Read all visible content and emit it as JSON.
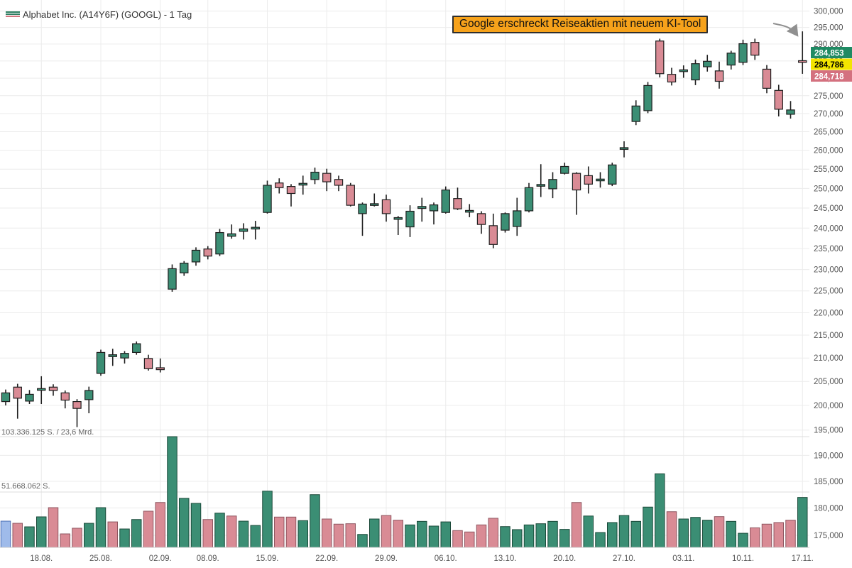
{
  "legend": {
    "title": "Alphabet Inc. (A14Y6F) (GOOGL) - 1 Tag"
  },
  "annotation": {
    "text": "Google erschreckt Reiseaktien mit neuem KI-Tool",
    "bg": "#F6A21B"
  },
  "volume_axis": {
    "max_label": "103.336.125 S. / 23,6 Mrd.",
    "max_value_millions": 103.336125,
    "mid_label": "51.668.062 S.",
    "mid_value_millions": 51.668062
  },
  "quote_labels": [
    {
      "text": "284,853",
      "bg": "#1f8a63",
      "fg": "#ffffff"
    },
    {
      "text": "284,786",
      "bg": "#f2e400",
      "fg": "#000000"
    },
    {
      "text": "284,718",
      "bg": "#d4717f",
      "fg": "#ffffff"
    }
  ],
  "chart_data": {
    "type": "candlestick_with_volume",
    "title": "Alphabet Inc. (A14Y6F) (GOOGL) - 1 Tag",
    "interval": "1 Tag",
    "y_scale": "log",
    "y_axis_ticks": [
      "300,000",
      "295,000",
      "290,000",
      "285,000",
      "280,000",
      "275,000",
      "270,000",
      "265,000",
      "260,000",
      "255,000",
      "250,000",
      "245,000",
      "240,000",
      "235,000",
      "230,000",
      "225,000",
      "220,000",
      "215,000",
      "210,000",
      "205,000",
      "200,000",
      "195,000",
      "190,000",
      "185,000",
      "180,000",
      "175,000"
    ],
    "x_tick_labels": [
      {
        "index": 3,
        "label": "18.08."
      },
      {
        "index": 8,
        "label": "25.08."
      },
      {
        "index": 13,
        "label": "02.09."
      },
      {
        "index": 17,
        "label": "08.09."
      },
      {
        "index": 22,
        "label": "15.09."
      },
      {
        "index": 27,
        "label": "22.09."
      },
      {
        "index": 32,
        "label": "29.09."
      },
      {
        "index": 37,
        "label": "06.10."
      },
      {
        "index": 42,
        "label": "13.10."
      },
      {
        "index": 47,
        "label": "20.10."
      },
      {
        "index": 52,
        "label": "27.10."
      },
      {
        "index": 57,
        "label": "03.11."
      },
      {
        "index": 62,
        "label": "10.11."
      },
      {
        "index": 67,
        "label": "17.11."
      }
    ],
    "series_ohlcv": [
      [
        200.8,
        203.3,
        200.0,
        202.6,
        24.5
      ],
      [
        203.8,
        204.5,
        197.3,
        201.5,
        22.5
      ],
      [
        200.9,
        203.2,
        200.3,
        202.3,
        19.2
      ],
      [
        203.3,
        206.1,
        200.3,
        203.5,
        28.5
      ],
      [
        203.8,
        204.4,
        202.0,
        203.1,
        37.1
      ],
      [
        202.6,
        203.1,
        199.4,
        201.1,
        12.6
      ],
      [
        200.8,
        201.3,
        195.6,
        199.4,
        17.9
      ],
      [
        201.2,
        203.9,
        198.4,
        203.1,
        22.5
      ],
      [
        206.7,
        211.8,
        206.2,
        211.2,
        37.1
      ],
      [
        210.3,
        212.0,
        208.3,
        210.7,
        23.8
      ],
      [
        210.0,
        211.5,
        208.8,
        211.0,
        17.2
      ],
      [
        211.2,
        213.6,
        210.7,
        213.1,
        26.0
      ],
      [
        209.9,
        210.7,
        207.3,
        207.7,
        33.8
      ],
      [
        207.9,
        209.9,
        206.9,
        207.5,
        41.9
      ],
      [
        225.4,
        231.2,
        224.8,
        230.2,
        103.336
      ],
      [
        229.2,
        232.0,
        228.5,
        231.5,
        45.8
      ],
      [
        231.8,
        235.3,
        230.9,
        234.6,
        41.1
      ],
      [
        234.9,
        235.6,
        232.4,
        233.2,
        26.0
      ],
      [
        233.7,
        239.8,
        233.2,
        238.9,
        32.0
      ],
      [
        238.0,
        240.9,
        237.4,
        238.6,
        29.3
      ],
      [
        239.2,
        241.2,
        237.2,
        239.8,
        24.5
      ],
      [
        239.9,
        241.8,
        237.2,
        240.2,
        20.5
      ],
      [
        243.9,
        252.0,
        243.6,
        250.8,
        52.5
      ],
      [
        251.4,
        252.6,
        248.7,
        250.2,
        28.3
      ],
      [
        250.5,
        251.1,
        245.4,
        248.7,
        28.3
      ],
      [
        250.9,
        253.3,
        248.4,
        251.3,
        25.0
      ],
      [
        252.3,
        255.4,
        251.1,
        254.2,
        49.2
      ],
      [
        253.9,
        255.1,
        249.3,
        251.7,
        26.5
      ],
      [
        252.3,
        253.3,
        249.3,
        250.8,
        21.7
      ],
      [
        250.8,
        251.4,
        245.4,
        245.7,
        22.1
      ],
      [
        243.6,
        246.4,
        238.1,
        246.0,
        12.1
      ],
      [
        245.8,
        248.7,
        245.4,
        246.1,
        26.5
      ],
      [
        247.1,
        248.4,
        241.6,
        243.6,
        29.8
      ],
      [
        242.2,
        243.0,
        238.3,
        242.6,
        25.4
      ],
      [
        240.3,
        245.7,
        237.8,
        244.2,
        21.0
      ],
      [
        244.9,
        247.6,
        241.6,
        245.4,
        24.3
      ],
      [
        244.3,
        246.4,
        240.9,
        245.8,
        19.9
      ],
      [
        243.9,
        250.5,
        243.6,
        249.6,
        23.8
      ],
      [
        247.4,
        250.2,
        244.5,
        244.8,
        15.7
      ],
      [
        244.0,
        246.0,
        242.7,
        244.4,
        14.4
      ],
      [
        243.6,
        244.2,
        238.6,
        240.9,
        21.0
      ],
      [
        240.6,
        243.6,
        235.1,
        236.0,
        27.2
      ],
      [
        239.5,
        243.9,
        238.9,
        243.6,
        19.4
      ],
      [
        240.4,
        247.6,
        238.1,
        244.3,
        16.6
      ],
      [
        244.3,
        251.4,
        243.9,
        250.2,
        21.0
      ],
      [
        250.6,
        256.3,
        247.8,
        251.0,
        22.1
      ],
      [
        249.9,
        254.2,
        247.5,
        252.3,
        24.3
      ],
      [
        253.9,
        256.7,
        253.6,
        255.7,
        16.8
      ],
      [
        253.9,
        254.2,
        243.3,
        249.6,
        41.9
      ],
      [
        253.3,
        255.7,
        248.7,
        251.1,
        29.3
      ],
      [
        252.0,
        254.2,
        250.2,
        252.4,
        13.9
      ],
      [
        251.1,
        256.7,
        250.6,
        256.1,
        23.2
      ],
      [
        260.3,
        262.4,
        258.1,
        260.7,
        29.8
      ],
      [
        267.8,
        273.7,
        266.8,
        272.1,
        24.3
      ],
      [
        270.8,
        278.9,
        270.1,
        277.9,
        37.6
      ],
      [
        290.9,
        291.6,
        280.2,
        281.3,
        68.7
      ],
      [
        281.1,
        283.0,
        277.9,
        278.9,
        33.3
      ],
      [
        281.9,
        283.7,
        280.1,
        282.4,
        26.5
      ],
      [
        279.5,
        285.4,
        278.0,
        284.2,
        28.0
      ],
      [
        283.3,
        286.8,
        281.9,
        284.9,
        25.4
      ],
      [
        282.1,
        284.8,
        277.0,
        279.1,
        28.7
      ],
      [
        283.8,
        288.0,
        282.5,
        287.3,
        24.3
      ],
      [
        284.6,
        291.3,
        283.8,
        290.1,
        13.2
      ],
      [
        290.5,
        291.6,
        285.3,
        286.7,
        18.3
      ],
      [
        282.6,
        283.8,
        275.7,
        277.1,
        21.7
      ],
      [
        276.5,
        278.1,
        269.2,
        271.2,
        23.2
      ],
      [
        269.8,
        273.5,
        268.6,
        271.0,
        25.4
      ],
      [
        285.08,
        293.8,
        281.26,
        284.786,
        46.6
      ]
    ],
    "colors": {
      "up": "#3b8e74",
      "down": "#d98b95",
      "up_stroke": "#1b4a3a",
      "down_stroke": "#8f5660",
      "candle_stroke": "#1f1f1f",
      "first_volume_bar": "#9fbbea",
      "first_volume_bar_stroke": "#4a6fb5",
      "grid": "#ececec",
      "volume_grid": "#dcdcdc",
      "axis_text": "#555555",
      "baseline": "#cccccc",
      "arrow": "#909090"
    }
  }
}
